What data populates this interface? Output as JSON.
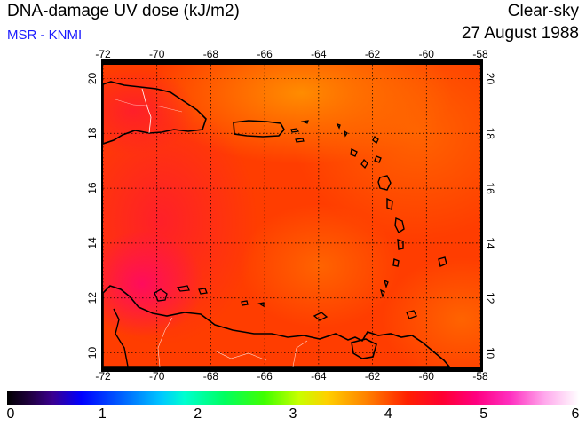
{
  "header": {
    "title": "DNA-damage UV dose (kJ/m2)",
    "subtitle": "MSR - KNMI",
    "condition": "Clear-sky",
    "date": "27 August 1988"
  },
  "map": {
    "lon_ticks": [
      "-72",
      "-70",
      "-68",
      "-66",
      "-64",
      "-62",
      "-60",
      "-58"
    ],
    "lat_ticks": [
      "10",
      "12",
      "14",
      "16",
      "18",
      "20"
    ],
    "lon_range": [
      -72,
      -58
    ],
    "lat_range": [
      9.5,
      20.5
    ],
    "field_colors": {
      "base": "#ff3b00",
      "warm": "#ff6a00",
      "hot": "#ff9a00",
      "high": "#ff1a30",
      "peak": "#ff0a55"
    },
    "coastline_color": "#000000",
    "border_color": "#ffffff"
  },
  "colorbar": {
    "labels": [
      "0",
      "1",
      "2",
      "3",
      "4",
      "5",
      "6"
    ],
    "range": [
      0,
      6
    ]
  }
}
